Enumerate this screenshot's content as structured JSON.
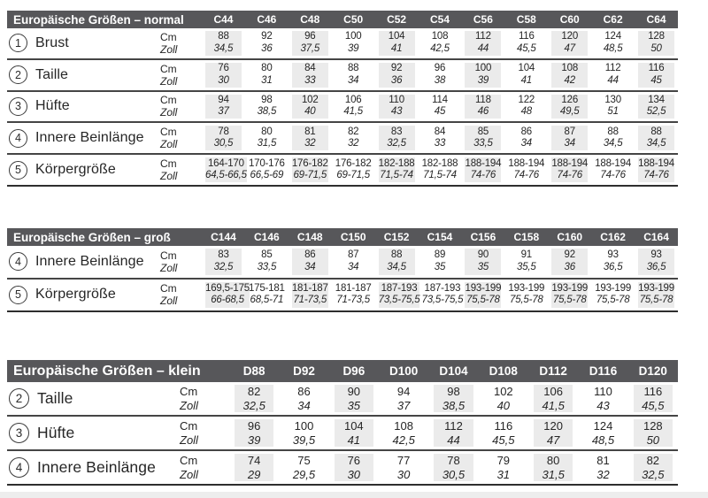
{
  "colors": {
    "header_bg": "#57575a",
    "stripe": "#ebebeb",
    "line": "#454545",
    "text": "#262626"
  },
  "tables": [
    {
      "id": "normal",
      "title": "Europäische Größen – normal",
      "columns": [
        "C44",
        "C46",
        "C48",
        "C50",
        "C52",
        "C54",
        "C56",
        "C58",
        "C60",
        "C62",
        "C64"
      ],
      "unit_labels": {
        "cm": "Cm",
        "zoll": "Zoll"
      },
      "rows": [
        {
          "num": "1",
          "label": "Brust",
          "cm": [
            "88",
            "92",
            "96",
            "100",
            "104",
            "108",
            "112",
            "116",
            "120",
            "124",
            "128"
          ],
          "zoll": [
            "34,5",
            "36",
            "37,5",
            "39",
            "41",
            "42,5",
            "44",
            "45,5",
            "47",
            "48,5",
            "50"
          ]
        },
        {
          "num": "2",
          "label": "Taille",
          "cm": [
            "76",
            "80",
            "84",
            "88",
            "92",
            "96",
            "100",
            "104",
            "108",
            "112",
            "116"
          ],
          "zoll": [
            "30",
            "31",
            "33",
            "34",
            "36",
            "38",
            "39",
            "41",
            "42",
            "44",
            "45"
          ]
        },
        {
          "num": "3",
          "label": "Hüfte",
          "cm": [
            "94",
            "98",
            "102",
            "106",
            "110",
            "114",
            "118",
            "122",
            "126",
            "130",
            "134"
          ],
          "zoll": [
            "37",
            "38,5",
            "40",
            "41,5",
            "43",
            "45",
            "46",
            "48",
            "49,5",
            "51",
            "52,5"
          ]
        },
        {
          "num": "4",
          "label": "Innere Beinlänge",
          "cm": [
            "78",
            "80",
            "81",
            "82",
            "83",
            "84",
            "85",
            "86",
            "87",
            "88",
            "88"
          ],
          "zoll": [
            "30,5",
            "31,5",
            "32",
            "32",
            "32,5",
            "33",
            "33,5",
            "34",
            "34",
            "34,5",
            "34,5"
          ]
        },
        {
          "num": "5",
          "label": "Körpergröße",
          "cm": [
            "164-170",
            "170-176",
            "176-182",
            "176-182",
            "182-188",
            "182-188",
            "188-194",
            "188-194",
            "188-194",
            "188-194",
            "188-194"
          ],
          "zoll": [
            "64,5-66,5",
            "66,5-69",
            "69-71,5",
            "69-71,5",
            "71,5-74",
            "71,5-74",
            "74-76",
            "74-76",
            "74-76",
            "74-76",
            "74-76"
          ]
        }
      ]
    },
    {
      "id": "gross",
      "title": "Europäische Größen – groß",
      "columns": [
        "C144",
        "C146",
        "C148",
        "C150",
        "C152",
        "C154",
        "C156",
        "C158",
        "C160",
        "C162",
        "C164"
      ],
      "unit_labels": {
        "cm": "Cm",
        "zoll": "Zoll"
      },
      "rows": [
        {
          "num": "4",
          "label": "Innere Beinlänge",
          "cm": [
            "83",
            "85",
            "86",
            "87",
            "88",
            "89",
            "90",
            "91",
            "92",
            "93",
            "93"
          ],
          "zoll": [
            "32,5",
            "33,5",
            "34",
            "34",
            "34,5",
            "35",
            "35",
            "35,5",
            "36",
            "36,5",
            "36,5"
          ]
        },
        {
          "num": "5",
          "label": "Körpergröße",
          "cm": [
            "169,5-175",
            "175-181",
            "181-187",
            "181-187",
            "187-193",
            "187-193",
            "193-199",
            "193-199",
            "193-199",
            "193-199",
            "193-199"
          ],
          "zoll": [
            "66-68,5",
            "68,5-71",
            "71-73,5",
            "71-73,5",
            "73,5-75,5",
            "73,5-75,5",
            "75,5-78",
            "75,5-78",
            "75,5-78",
            "75,5-78",
            "75,5-78"
          ]
        }
      ]
    },
    {
      "id": "klein",
      "title": "Europäische Größen – klein",
      "columns": [
        "D88",
        "D92",
        "D96",
        "D100",
        "D104",
        "D108",
        "D112",
        "D116",
        "D120"
      ],
      "unit_labels": {
        "cm": "Cm",
        "zoll": "Zoll"
      },
      "rows": [
        {
          "num": "2",
          "label": "Taille",
          "cm": [
            "82",
            "86",
            "90",
            "94",
            "98",
            "102",
            "106",
            "110",
            "116"
          ],
          "zoll": [
            "32,5",
            "34",
            "35",
            "37",
            "38,5",
            "40",
            "41,5",
            "43",
            "45,5"
          ]
        },
        {
          "num": "3",
          "label": "Hüfte",
          "cm": [
            "96",
            "100",
            "104",
            "108",
            "112",
            "116",
            "120",
            "124",
            "128"
          ],
          "zoll": [
            "39",
            "39,5",
            "41",
            "42,5",
            "44",
            "45,5",
            "47",
            "48,5",
            "50"
          ]
        },
        {
          "num": "4",
          "label": "Innere Beinlänge",
          "cm": [
            "74",
            "75",
            "76",
            "77",
            "78",
            "79",
            "80",
            "81",
            "82"
          ],
          "zoll": [
            "29",
            "29,5",
            "30",
            "30",
            "30,5",
            "31",
            "31,5",
            "32",
            "32,5"
          ]
        }
      ]
    }
  ]
}
